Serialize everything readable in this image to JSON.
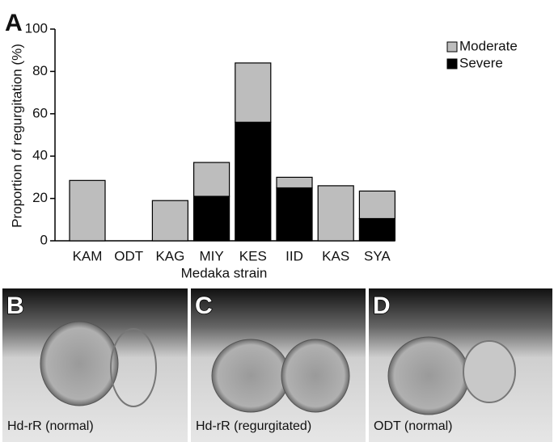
{
  "figure_label": "A",
  "chart_data": {
    "type": "stacked_bar",
    "ylabel": "Proportion of regurgitation (%)",
    "xlabel": "Medaka strain",
    "categories": [
      "KAM",
      "ODT",
      "KAG",
      "MIY",
      "KES",
      "IID",
      "KAS",
      "SYA"
    ],
    "series": [
      {
        "name": "Moderate",
        "color": "#bdbdbd",
        "values": [
          28.5,
          0,
          19,
          16,
          28,
          5,
          26,
          13
        ]
      },
      {
        "name": "Severe",
        "color": "#000000",
        "values": [
          0,
          0,
          0,
          21,
          56,
          25,
          0,
          10.5
        ]
      }
    ],
    "ylim": [
      0,
      100
    ],
    "yticks": [
      0,
      20,
      40,
      60,
      80,
      100
    ],
    "grid": false,
    "legend": "upper right"
  },
  "panels": [
    {
      "label": "B",
      "caption": "Hd-rR (normal)"
    },
    {
      "label": "C",
      "caption": "Hd-rR (regurgitated)"
    },
    {
      "label": "D",
      "caption": "ODT (normal)"
    }
  ]
}
